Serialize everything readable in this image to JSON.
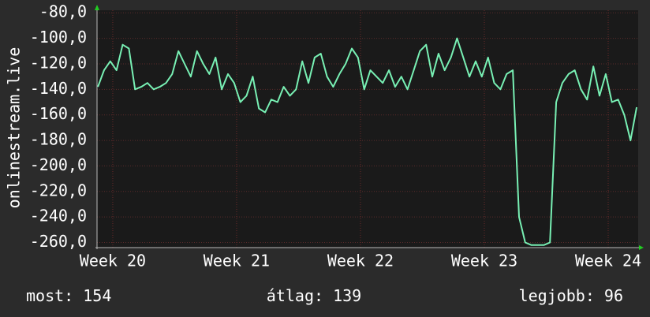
{
  "chart_data": {
    "type": "line",
    "y_label": "onlinestream.live",
    "color": "#78f0b4",
    "grid": true,
    "xlim": [
      19.873,
      24.242
    ],
    "xticks": [
      {
        "value": 20,
        "label": "Week 20"
      },
      {
        "value": 21,
        "label": "Week 21"
      },
      {
        "value": 22,
        "label": "Week 22"
      },
      {
        "value": 23,
        "label": "Week 23"
      },
      {
        "value": 24,
        "label": "Week 24"
      }
    ],
    "ylim": [
      -264,
      -78
    ],
    "yticks": [
      {
        "value": -80,
        "label": "-80,0"
      },
      {
        "value": -100,
        "label": "-100,0"
      },
      {
        "value": -120,
        "label": "-120,0"
      },
      {
        "value": -140,
        "label": "-140,0"
      },
      {
        "value": -160,
        "label": "-160,0"
      },
      {
        "value": -180,
        "label": "-180,0"
      },
      {
        "value": -200,
        "label": "-200,0"
      },
      {
        "value": -220,
        "label": "-220,0"
      },
      {
        "value": -240,
        "label": "-240,0"
      },
      {
        "value": -260,
        "label": "-260,0"
      }
    ],
    "x": [
      19.88,
      19.93,
      19.98,
      20.03,
      20.08,
      20.13,
      20.18,
      20.23,
      20.28,
      20.33,
      20.38,
      20.43,
      20.48,
      20.53,
      20.58,
      20.63,
      20.68,
      20.73,
      20.78,
      20.83,
      20.88,
      20.93,
      20.98,
      21.03,
      21.08,
      21.13,
      21.18,
      21.23,
      21.28,
      21.33,
      21.38,
      21.43,
      21.48,
      21.53,
      21.58,
      21.63,
      21.68,
      21.73,
      21.78,
      21.83,
      21.88,
      21.93,
      21.98,
      22.03,
      22.08,
      22.13,
      22.18,
      22.23,
      22.28,
      22.33,
      22.38,
      22.43,
      22.48,
      22.53,
      22.58,
      22.63,
      22.68,
      22.73,
      22.78,
      22.83,
      22.88,
      22.93,
      22.98,
      23.03,
      23.08,
      23.13,
      23.18,
      23.23,
      23.28,
      23.33,
      23.38,
      23.43,
      23.48,
      23.53,
      23.58,
      23.63,
      23.68,
      23.73,
      23.78,
      23.83,
      23.88,
      23.93,
      23.98,
      24.03,
      24.08,
      24.13,
      24.18,
      24.23
    ],
    "values": [
      -138,
      -125,
      -118,
      -125,
      -105,
      -108,
      -140,
      -138,
      -135,
      -140,
      -138,
      -135,
      -128,
      -110,
      -120,
      -130,
      -110,
      -120,
      -128,
      -115,
      -140,
      -128,
      -135,
      -150,
      -145,
      -130,
      -155,
      -158,
      -148,
      -150,
      -138,
      -145,
      -140,
      -118,
      -135,
      -115,
      -112,
      -130,
      -138,
      -128,
      -120,
      -108,
      -115,
      -140,
      -125,
      -130,
      -135,
      -125,
      -138,
      -130,
      -140,
      -125,
      -110,
      -105,
      -130,
      -112,
      -125,
      -115,
      -100,
      -115,
      -130,
      -118,
      -130,
      -115,
      -135,
      -140,
      -128,
      -125,
      -240,
      -260,
      -262,
      -262,
      -262,
      -260,
      -150,
      -135,
      -128,
      -125,
      -140,
      -148,
      -122,
      -145,
      -128,
      -150,
      -148,
      -160,
      -180,
      -154
    ]
  },
  "footer": {
    "current": "most: 154",
    "average": "átlag: 139",
    "best": "legjobb: 96"
  }
}
